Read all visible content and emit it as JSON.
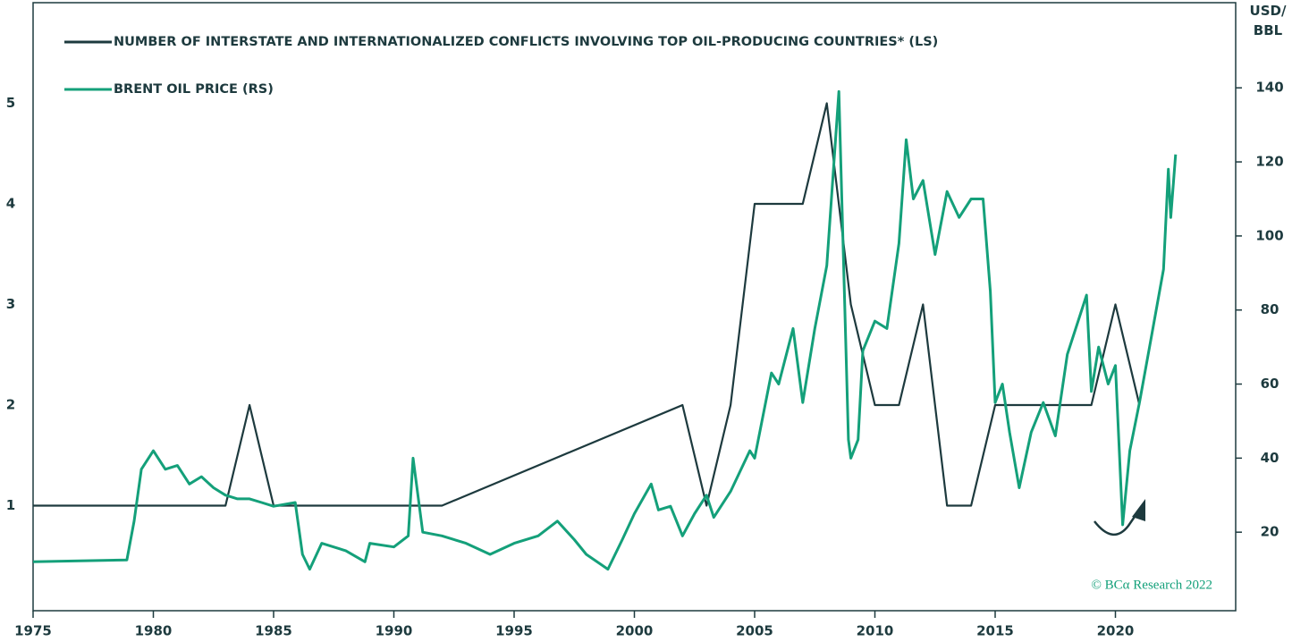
{
  "chart_data": {
    "type": "line",
    "series": [
      {
        "name": "NUMBER OF INTERSTATE AND INTERNATIONALIZED CONFLICTS INVOLVING TOP OIL-PRODUCING COUNTRIES* (LS)",
        "color": "#1d3a3e",
        "axis": "y",
        "x": [
          1975,
          1983,
          1984,
          1985,
          1992,
          2002,
          2003,
          2004,
          2005,
          2007,
          2008,
          2009,
          2010,
          2011,
          2012,
          2013,
          2014,
          2015,
          2019,
          2020,
          2021
        ],
        "values": [
          1,
          1,
          2,
          1,
          1,
          2,
          1,
          2,
          4,
          4,
          5,
          3,
          2,
          2,
          3,
          1,
          1,
          2,
          2,
          3,
          2
        ]
      },
      {
        "name": "BRENT OIL PRICE (RS)",
        "color": "#14a07a",
        "axis": "y2",
        "x": [
          1975,
          1978.9,
          1979.2,
          1979.5,
          1980,
          1980.5,
          1981,
          1981.5,
          1982,
          1982.5,
          1983,
          1983.5,
          1984,
          1984.5,
          1985,
          1985.9,
          1986.2,
          1986.5,
          1987,
          1988,
          1988.8,
          1989,
          1990,
          1990.6,
          1990.8,
          1991.2,
          1992,
          1993,
          1994,
          1995,
          1996,
          1996.8,
          1997.5,
          1998,
          1998.9,
          1999.5,
          2000,
          2000.7,
          2001,
          2001.5,
          2002,
          2002.5,
          2003,
          2003.3,
          2004,
          2004.8,
          2005,
          2005.7,
          2006,
          2006.6,
          2007,
          2007.5,
          2008,
          2008.5,
          2008.9,
          2009,
          2009.3,
          2009.5,
          2010,
          2010.5,
          2011,
          2011.3,
          2011.6,
          2012,
          2012.5,
          2013,
          2013.5,
          2014,
          2014.5,
          2014.8,
          2015,
          2015.3,
          2015.6,
          2016,
          2016.5,
          2017,
          2017.5,
          2018,
          2018.8,
          2019,
          2019.3,
          2019.7,
          2020,
          2020.3,
          2020.6,
          2021,
          2021.5,
          2022,
          2022.2,
          2022.3,
          2022.5
        ],
        "values": [
          12,
          12.5,
          23,
          37,
          42,
          37,
          38,
          33,
          35,
          32,
          30,
          29,
          29,
          28,
          27,
          28,
          14,
          10,
          17,
          15,
          12,
          17,
          16,
          19,
          40,
          20,
          19,
          17,
          14,
          17,
          19,
          23,
          18,
          14,
          10,
          18,
          25,
          33,
          26,
          27,
          19,
          25,
          30,
          24,
          31,
          42,
          40,
          63,
          60,
          75,
          55,
          75,
          92,
          139,
          45,
          40,
          45,
          69,
          77,
          75,
          98,
          126,
          110,
          115,
          95,
          112,
          105,
          110,
          110,
          85,
          55,
          60,
          47,
          32,
          47,
          55,
          46,
          68,
          84,
          58,
          70,
          60,
          65,
          22,
          42,
          55,
          73,
          91,
          118,
          105,
          122
        ]
      }
    ],
    "xlim": [
      1975,
      2025
    ],
    "xticks": [
      1975,
      1980,
      1985,
      1990,
      1995,
      2000,
      2005,
      2010,
      2015,
      2020
    ],
    "ylim": [
      0,
      6
    ],
    "yticks": [
      1,
      2,
      3,
      4,
      5
    ],
    "y2lim": [
      0,
      163
    ],
    "y2ticks": [
      20,
      40,
      60,
      80,
      100,
      120,
      140
    ],
    "y2_label": "USD/ BBL",
    "annotation": "© BCα Research 2022"
  }
}
